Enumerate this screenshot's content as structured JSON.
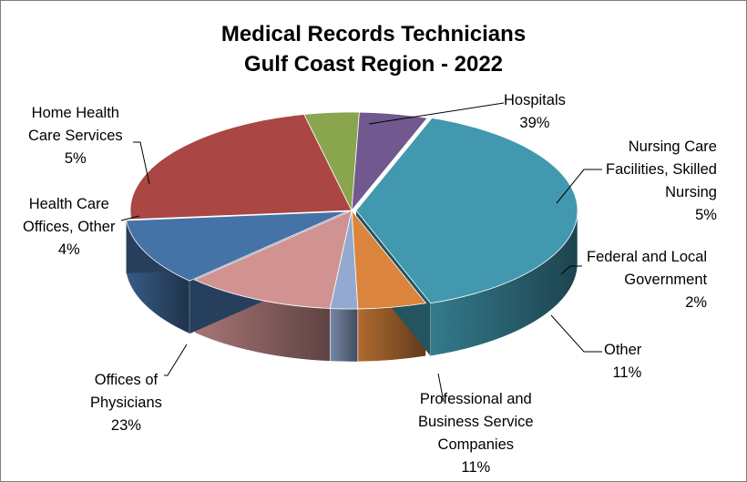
{
  "chart_data": {
    "type": "pie",
    "title": [
      "Medical Records Technicians",
      "Gulf Coast Region - 2022"
    ],
    "slices": [
      {
        "label": [
          "Hospitals"
        ],
        "value": 39,
        "value_label": "39%",
        "color": "#4198AF"
      },
      {
        "label": [
          "Nursing Care",
          "Facilities, Skilled",
          "Nursing"
        ],
        "value": 5,
        "value_label": "5%",
        "color": "#DB843D"
      },
      {
        "label": [
          "Federal and Local",
          "Government"
        ],
        "value": 2,
        "value_label": "2%",
        "color": "#93A9CF"
      },
      {
        "label": [
          "Other"
        ],
        "value": 11,
        "value_label": "11%",
        "color": "#D19392"
      },
      {
        "label": [
          "Professional and",
          "Business Service",
          "Companies"
        ],
        "value": 11,
        "value_label": "11%",
        "color": "#4572A7"
      },
      {
        "label": [
          "Offices of",
          "Physicians"
        ],
        "value": 23,
        "value_label": "23%",
        "color": "#AA4643"
      },
      {
        "label": [
          "Health Care",
          "Offices, Other"
        ],
        "value": 4,
        "value_label": "4%",
        "color": "#89A54E"
      },
      {
        "label": [
          "Home Health",
          "Care Services"
        ],
        "value": 5,
        "value_label": "5%",
        "color": "#71588F"
      }
    ]
  }
}
